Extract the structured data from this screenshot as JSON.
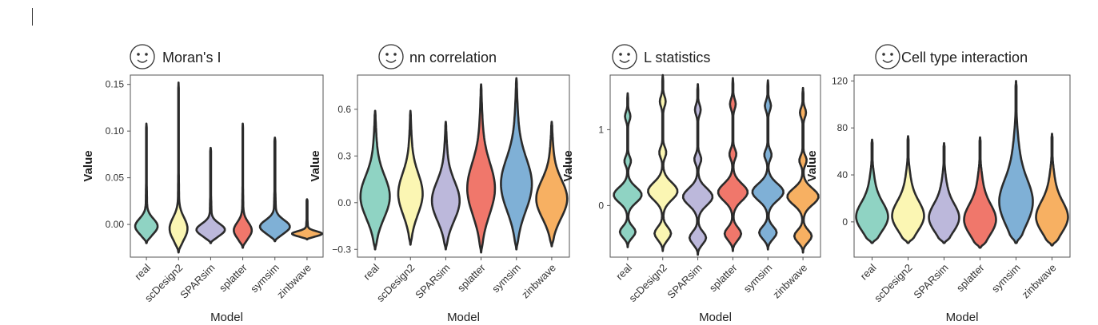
{
  "colors": {
    "real": "#8fd3c3",
    "scDesign2": "#fbf6b3",
    "SPARsim": "#bcb8db",
    "splatter": "#f0776b",
    "symsim": "#7fb0d6",
    "zinbwave": "#f7b062",
    "outline": "#2b2b2b",
    "frame": "#555555"
  },
  "icon": "smiley-face-icon",
  "chart_data": [
    {
      "type": "violin",
      "title": "Moran's I",
      "xlabel": "Model",
      "ylabel": "Value",
      "ylim": [
        -0.035,
        0.16
      ],
      "yticks": [
        0.0,
        0.05,
        0.1,
        0.15
      ],
      "ytick_labels": [
        "0.00",
        "0.05",
        "0.10",
        "0.15"
      ],
      "categories": [
        "real",
        "scDesign2",
        "SPARsim",
        "splatter",
        "symsim",
        "zinbwave"
      ],
      "violins": [
        {
          "name": "real",
          "ymin": -0.02,
          "ymax": 0.108,
          "center": 0.005,
          "width": 0.75
        },
        {
          "name": "scDesign2",
          "ymin": -0.03,
          "ymax": 0.152,
          "center": 0.005,
          "width": 0.6
        },
        {
          "name": "SPARsim",
          "ymin": -0.02,
          "ymax": 0.082,
          "center": 0.003,
          "width": 0.95
        },
        {
          "name": "splatter",
          "ymin": -0.025,
          "ymax": 0.108,
          "center": 0.008,
          "width": 0.6
        },
        {
          "name": "symsim",
          "ymin": -0.018,
          "ymax": 0.093,
          "center": -0.004,
          "width": 1.0
        },
        {
          "name": "zinbwave",
          "ymin": -0.016,
          "ymax": 0.027,
          "center": -0.002,
          "width": 1.0
        }
      ]
    },
    {
      "type": "violin",
      "title": "nn correlation",
      "xlabel": "Model",
      "ylabel": "Value",
      "ylim": [
        -0.35,
        0.82
      ],
      "yticks": [
        -0.3,
        0.0,
        0.3,
        0.6
      ],
      "ytick_labels": [
        "−0.3",
        "0.0",
        "0.3",
        "0.6"
      ],
      "categories": [
        "real",
        "scDesign2",
        "SPARsim",
        "splatter",
        "symsim",
        "zinbwave"
      ],
      "violins": [
        {
          "name": "real",
          "ymin": -0.3,
          "ymax": 0.59,
          "center": 0.08,
          "width": 0.9
        },
        {
          "name": "scDesign2",
          "ymin": -0.27,
          "ymax": 0.59,
          "center": 0.1,
          "width": 0.75
        },
        {
          "name": "SPARsim",
          "ymin": -0.3,
          "ymax": 0.52,
          "center": 0.06,
          "width": 0.85
        },
        {
          "name": "splatter",
          "ymin": -0.32,
          "ymax": 0.76,
          "center": 0.15,
          "width": 0.85
        },
        {
          "name": "symsim",
          "ymin": -0.3,
          "ymax": 0.8,
          "center": 0.02,
          "width": 0.95
        },
        {
          "name": "zinbwave",
          "ymin": -0.28,
          "ymax": 0.52,
          "center": 0.02,
          "width": 0.95
        }
      ]
    },
    {
      "type": "violin",
      "title": "L statistics",
      "xlabel": "Model",
      "ylabel": "Value",
      "ylim": [
        -0.68,
        1.72
      ],
      "yticks": [
        0,
        1
      ],
      "ytick_labels": [
        "0",
        "1"
      ],
      "categories": [
        "real",
        "scDesign2",
        "SPARsim",
        "splatter",
        "symsim",
        "zinbwave"
      ],
      "violins": [
        {
          "name": "real",
          "ymin": -0.55,
          "ymax": 1.48,
          "center": 0.12,
          "width": 0.85
        },
        {
          "name": "scDesign2",
          "ymin": -0.6,
          "ymax": 1.72,
          "center": 0.12,
          "width": 0.9
        },
        {
          "name": "SPARsim",
          "ymin": -0.65,
          "ymax": 1.6,
          "center": 0.12,
          "width": 0.9
        },
        {
          "name": "splatter",
          "ymin": -0.6,
          "ymax": 1.68,
          "center": 0.12,
          "width": 0.9
        },
        {
          "name": "symsim",
          "ymin": -0.58,
          "ymax": 1.65,
          "center": 0.12,
          "width": 0.95
        },
        {
          "name": "zinbwave",
          "ymin": -0.62,
          "ymax": 1.55,
          "center": 0.12,
          "width": 0.95
        }
      ]
    },
    {
      "type": "violin",
      "title": "Cell type interaction",
      "xlabel": "Model",
      "ylabel": "Value",
      "ylim": [
        -30,
        125
      ],
      "yticks": [
        0,
        40,
        80,
        120
      ],
      "ytick_labels": [
        "0",
        "40",
        "80",
        "120"
      ],
      "categories": [
        "real",
        "scDesign2",
        "SPARsim",
        "splatter",
        "symsim",
        "zinbwave"
      ],
      "violins": [
        {
          "name": "real",
          "ymin": -18,
          "ymax": 70,
          "center": 15,
          "width": 0.95
        },
        {
          "name": "scDesign2",
          "ymin": -18,
          "ymax": 73,
          "center": 12,
          "width": 0.95
        },
        {
          "name": "SPARsim",
          "ymin": -18,
          "ymax": 67,
          "center": 15,
          "width": 0.9
        },
        {
          "name": "splatter",
          "ymin": -22,
          "ymax": 72,
          "center": 10,
          "width": 0.95
        },
        {
          "name": "symsim",
          "ymin": -18,
          "ymax": 120,
          "center": 5,
          "width": 1.0
        },
        {
          "name": "zinbwave",
          "ymin": -20,
          "ymax": 75,
          "center": 12,
          "width": 0.95
        }
      ]
    }
  ]
}
